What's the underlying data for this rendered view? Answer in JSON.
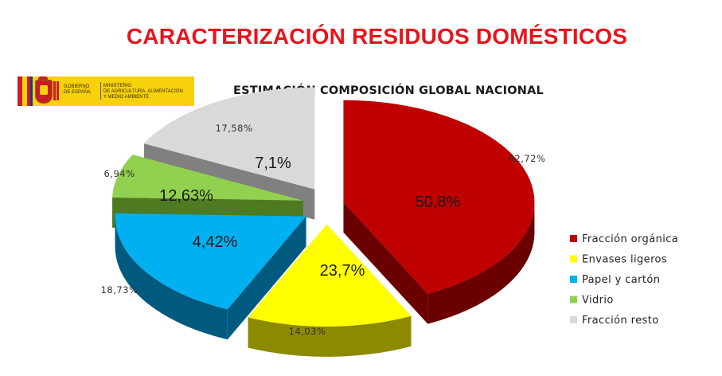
{
  "header": {
    "title": "CARACTERIZACIÓN RESIDUOS DOMÉSTICOS",
    "subtitle": "ESTIMACIÓN COMPOSICIÓN GLOBAL NACIONAL"
  },
  "logo": {
    "government_line1": "GOBIERNO",
    "government_line2": "DE ESPAÑA",
    "ministry_line1": "MINISTERIO",
    "ministry_line2": "DE AGRICULTURA, ALIMENTACIÓN",
    "ministry_line3": "Y MEDIO AMBIENTE"
  },
  "chart_data": {
    "type": "pie",
    "style": "3d-exploded",
    "series": [
      {
        "category": "Fracción orgánica",
        "value": 42.72,
        "outer_label": "42,72%",
        "inner_label": "50,8%",
        "color": "#c00000",
        "side_color": "#6b0000"
      },
      {
        "category": "Envases ligeros",
        "value": 14.03,
        "outer_label": "14,03%",
        "inner_label": "23,7%",
        "color": "#ffff00",
        "side_color": "#8c8a00"
      },
      {
        "category": "Papel y cartón",
        "value": 18.73,
        "outer_label": "18,73%",
        "inner_label": "4,42%",
        "color": "#00b0f0",
        "side_color": "#005a80"
      },
      {
        "category": "Vidrio",
        "value": 6.94,
        "outer_label": "6,94%",
        "inner_label": "12,63%",
        "color": "#92d050",
        "side_color": "#4e7a22"
      },
      {
        "category": "Fracción resto",
        "value": 17.58,
        "outer_label": "17,58%",
        "inner_label": "7,1%",
        "color": "#d9d9d9",
        "side_color": "#808080"
      }
    ],
    "legend_position": "right"
  }
}
